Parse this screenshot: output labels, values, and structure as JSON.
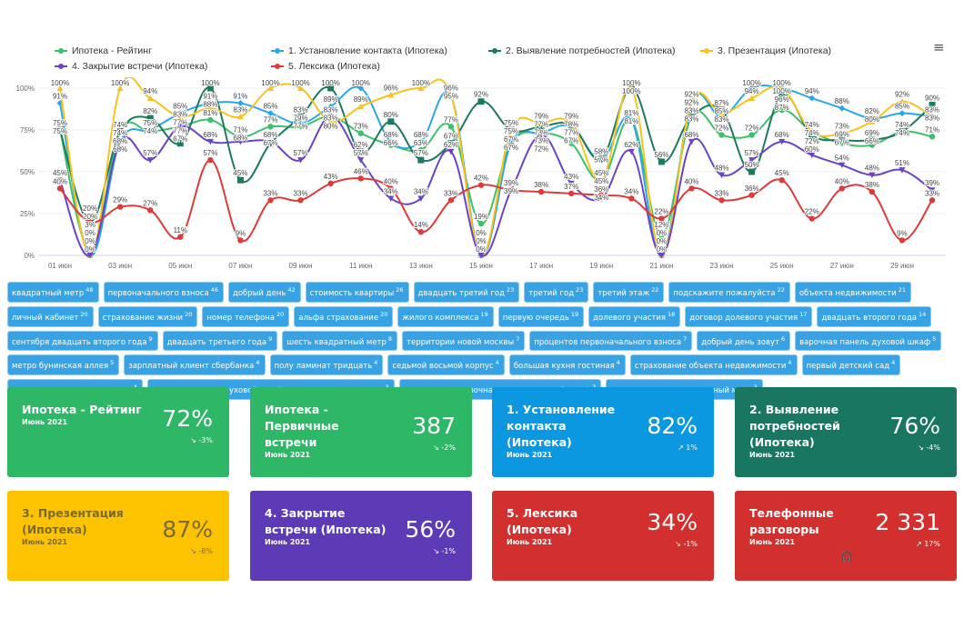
{
  "chart_data": {
    "type": "line",
    "categories": [
      "01 июн",
      "02 июн",
      "03 июн",
      "04 июн",
      "05 июн",
      "06 июн",
      "07 июн",
      "08 июн",
      "09 июн",
      "10 июн",
      "11 июн",
      "12 июн",
      "13 июн",
      "14 июн",
      "15 июн",
      "16 июн",
      "17 июн",
      "18 июн",
      "19 июн",
      "20 июн",
      "21 июн",
      "22 июн",
      "23 июн",
      "24 июн",
      "25 июн",
      "26 июн",
      "27 июн",
      "28 июн",
      "29 июн",
      "30 июн"
    ],
    "x_tick_labels": [
      "01 июн",
      "03 июн",
      "05 июн",
      "07 июн",
      "09 июн",
      "11 июн",
      "13 июн",
      "15 июн",
      "17 июн",
      "19 июн",
      "21 июн",
      "23 июн",
      "25 июн",
      "27 июн",
      "29 июн"
    ],
    "y_tick_labels": [
      "0%",
      "25%",
      "50%",
      "75%",
      "100%"
    ],
    "ylim": [
      0,
      100
    ],
    "grid": true,
    "legend": "top",
    "series": [
      {
        "name": "Ипотека - Рейтинг",
        "color": "#3cc06a",
        "marker": "circle",
        "values": [
          75,
          3,
          74,
          74,
          77,
          81,
          71,
          77,
          77,
          83,
          73,
          66,
          63,
          77,
          19,
          67,
          73,
          67,
          45,
          81,
          12,
          83,
          72,
          72,
          87,
          74,
          67,
          66,
          74,
          71
        ]
      },
      {
        "name": "1. Установление контакта (Ипотека)",
        "color": "#2ba7e8",
        "marker": "diamond",
        "values": [
          91,
          0,
          68,
          75,
          85,
          91,
          91,
          85,
          79,
          89,
          100,
          68,
          68,
          95,
          0,
          67,
          73,
          77,
          57,
          81,
          0,
          92,
          83,
          100,
          100,
          94,
          88,
          82,
          85,
          83
        ]
      },
      {
        "name": "2. Выявление потребностей (Ипотека)",
        "color": "#1c7a5e",
        "marker": "square",
        "values": [
          75,
          20,
          74,
          82,
          67,
          100,
          45,
          67,
          83,
          100,
          62,
          80,
          57,
          67,
          92,
          75,
          77,
          78,
          58,
          100,
          56,
          83,
          87,
          50,
          96,
          72,
          69,
          69,
          74,
          90
        ]
      },
      {
        "name": "3. Презентация (Ипотека)",
        "color": "#f8c21c",
        "marker": "triangle",
        "values": [
          100,
          0,
          100,
          94,
          83,
          88,
          83,
          100,
          100,
          80,
          89,
          96,
          100,
          96,
          0,
          75,
          79,
          79,
          45,
          100,
          0,
          92,
          85,
          94,
          100,
          74,
          73,
          80,
          92,
          83
        ]
      },
      {
        "name": "4. Закрытие встречи (Ипотека)",
        "color": "#6a43c8",
        "marker": "triangle-down",
        "values": [
          45,
          0,
          68,
          57,
          77,
          68,
          68,
          68,
          57,
          83,
          57,
          34,
          34,
          62,
          0,
          39,
          72,
          43,
          34,
          62,
          0,
          68,
          48,
          57,
          68,
          60,
          54,
          48,
          51,
          39
        ]
      },
      {
        "name": "5. Лексика (Ипотека)",
        "color": "#dd3a3a",
        "marker": "circle",
        "values": [
          40,
          20,
          29,
          27,
          11,
          57,
          9,
          33,
          33,
          43,
          46,
          40,
          14,
          33,
          42,
          39,
          38,
          37,
          36,
          34,
          22,
          40,
          33,
          36,
          45,
          22,
          40,
          38,
          9,
          33
        ]
      }
    ]
  },
  "menu_icon": "hamburger-menu-icon",
  "tags": [
    {
      "text": "квадратный метр",
      "count": "48"
    },
    {
      "text": "первоначального взноса",
      "count": "46"
    },
    {
      "text": "добрый день",
      "count": "42"
    },
    {
      "text": "стоимость квартиры",
      "count": "26"
    },
    {
      "text": "двадцать третий год",
      "count": "23"
    },
    {
      "text": "третий год",
      "count": "23"
    },
    {
      "text": "третий этаж",
      "count": "22"
    },
    {
      "text": "подскажите пожалуйста",
      "count": "22"
    },
    {
      "text": "объекта недвижимости",
      "count": "21"
    },
    {
      "text": "личный кабинет",
      "count": "20"
    },
    {
      "text": "страхование жизни",
      "count": "20"
    },
    {
      "text": "номер телефона",
      "count": "20"
    },
    {
      "text": "альфа страхование",
      "count": "20"
    },
    {
      "text": "жилого комплекса",
      "count": "19"
    },
    {
      "text": "первую очередь",
      "count": "19"
    },
    {
      "text": "долевого участия",
      "count": "18"
    },
    {
      "text": "договор долевого участия",
      "count": "17"
    },
    {
      "text": "двадцать второго года",
      "count": "14"
    },
    {
      "text": "сентября двадцать второго года",
      "count": "9"
    },
    {
      "text": "двадцать третьего года",
      "count": "9"
    },
    {
      "text": "шесть квадратный метр",
      "count": "8"
    },
    {
      "text": "территории новой москвы",
      "count": "7"
    },
    {
      "text": "процентов первоначального взноса",
      "count": "7"
    },
    {
      "text": "добрый день зовут",
      "count": "6"
    },
    {
      "text": "варочная панель духовой шкаф",
      "count": "5"
    },
    {
      "text": "метро бунинская аллея",
      "count": "5"
    },
    {
      "text": "зарплатный клиент сбербанка",
      "count": "4"
    },
    {
      "text": "полу ламинат тридцать",
      "count": "4"
    },
    {
      "text": "седьмой восьмой корпус",
      "count": "4"
    },
    {
      "text": "большая кухня гостиная",
      "count": "4"
    },
    {
      "text": "страхование объекта недвижимости",
      "count": "4"
    },
    {
      "text": "первый детский сад",
      "count": "4"
    },
    {
      "text": "ваш первоначального взноса",
      "count": "4"
    },
    {
      "text": "варочная панель духовой шкаф посудомоечная машина",
      "count": "3"
    },
    {
      "text": "холодильник варочная панель духовой шкаф",
      "count": "3"
    },
    {
      "text": "двадцать шесть квадратный метр",
      "count": "3"
    }
  ],
  "cards": [
    {
      "title": "Ипотека - Рейтинг",
      "period": "Июнь 2021",
      "value": "72%",
      "delta": "↘ -3%",
      "bg": "#2db767",
      "fg": "#ffffff"
    },
    {
      "title": "Ипотека - Первичные встречи",
      "period": "Июнь 2021",
      "value": "387",
      "delta": "↘ -2%",
      "bg": "#2db767",
      "fg": "#ffffff"
    },
    {
      "title": "1. Установление контакта (Ипотека)",
      "period": "Июнь 2021",
      "value": "82%",
      "delta": "↗ 1%",
      "bg": "#0b98e0",
      "fg": "#ffffff"
    },
    {
      "title": "2. Выявление потребностей (Ипотека)",
      "period": "Июнь 2021",
      "value": "76%",
      "delta": "↘ -4%",
      "bg": "#187661",
      "fg": "#ffffff"
    },
    {
      "title": "3. Презентация (Ипотека)",
      "period": "Июнь 2021",
      "value": "87%",
      "delta": "↘ -8%",
      "bg": "#fdc300",
      "fg": "#7a6a30"
    },
    {
      "title": "4. Закрытие встречи (Ипотека)",
      "period": "Июнь 2021",
      "value": "56%",
      "delta": "↘ -1%",
      "bg": "#5e3bb6",
      "fg": "#ffffff"
    },
    {
      "title": "5. Лексика (Ипотека)",
      "period": "Июнь 2021",
      "value": "34%",
      "delta": "↘ -1%",
      "bg": "#d22f2f",
      "fg": "#ffffff"
    },
    {
      "title": "Телефонные разговоры",
      "period": "Июнь 2021",
      "value": "2 331",
      "delta": "↗ 17%",
      "bg": "#d22f2f",
      "fg": "#ffffff",
      "icon": "headphones-icon"
    }
  ]
}
